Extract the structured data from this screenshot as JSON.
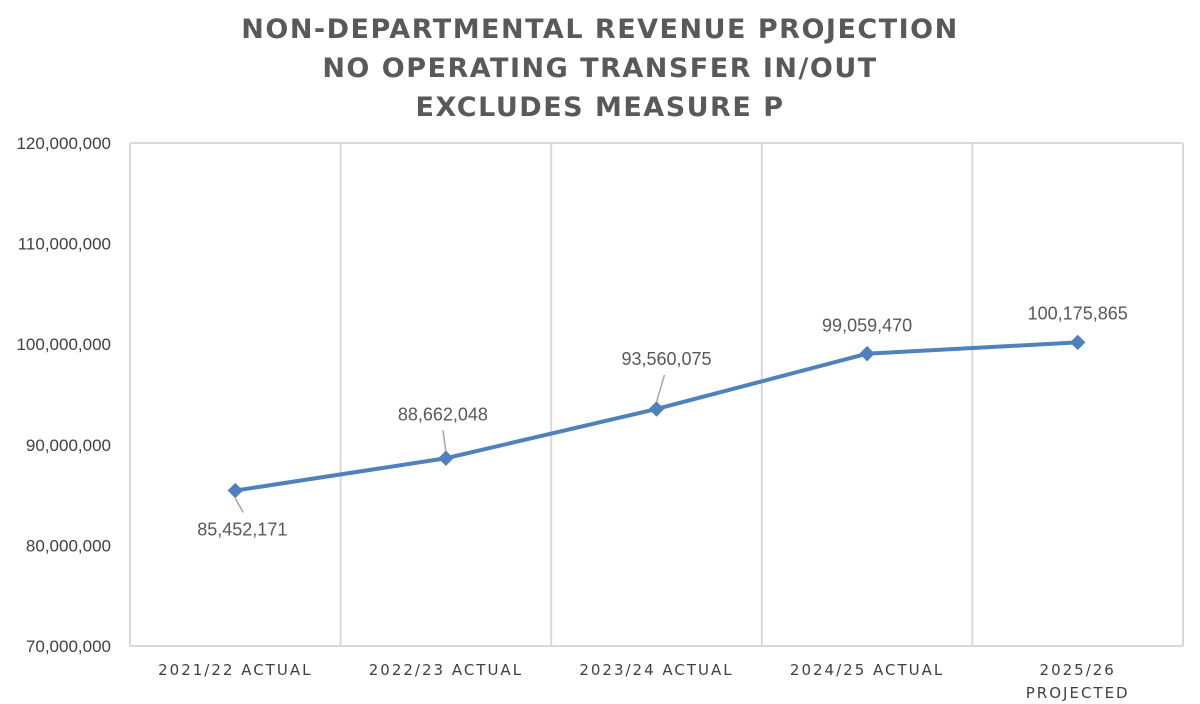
{
  "chart_data": {
    "type": "line",
    "title_lines": [
      "NON-DEPARTMENTAL REVENUE PROJECTION",
      "NO OPERATING TRANSFER IN/OUT",
      "EXCLUDES MEASURE P"
    ],
    "categories": [
      [
        "2021/22 ACTUAL"
      ],
      [
        "2022/23 ACTUAL"
      ],
      [
        "2023/24 ACTUAL"
      ],
      [
        "2024/25 ACTUAL"
      ],
      [
        "2025/26",
        "PROJECTED"
      ]
    ],
    "series": [
      {
        "values": [
          85452171,
          88662048,
          93560075,
          99059470,
          100175865
        ],
        "data_labels": [
          "85,452,171",
          "88,662,048",
          "93,560,075",
          "99,059,470",
          "100,175,865"
        ],
        "color": "#4f81bd",
        "marker": "diamond"
      }
    ],
    "ylim": [
      70000000,
      120000000
    ],
    "yticks": [
      70000000,
      80000000,
      90000000,
      100000000,
      110000000,
      120000000
    ],
    "ytick_labels": [
      "70,000,000",
      "80,000,000",
      "90,000,000",
      "100,000,000",
      "110,000,000",
      "120,000,000"
    ],
    "xlabel": "",
    "ylabel": "",
    "grid": "vertical",
    "legend": "none",
    "colors": {
      "line": "#4f81bd",
      "grid": "#d9d9d9",
      "text": "#595959",
      "leader": "#a6a6a6"
    }
  }
}
